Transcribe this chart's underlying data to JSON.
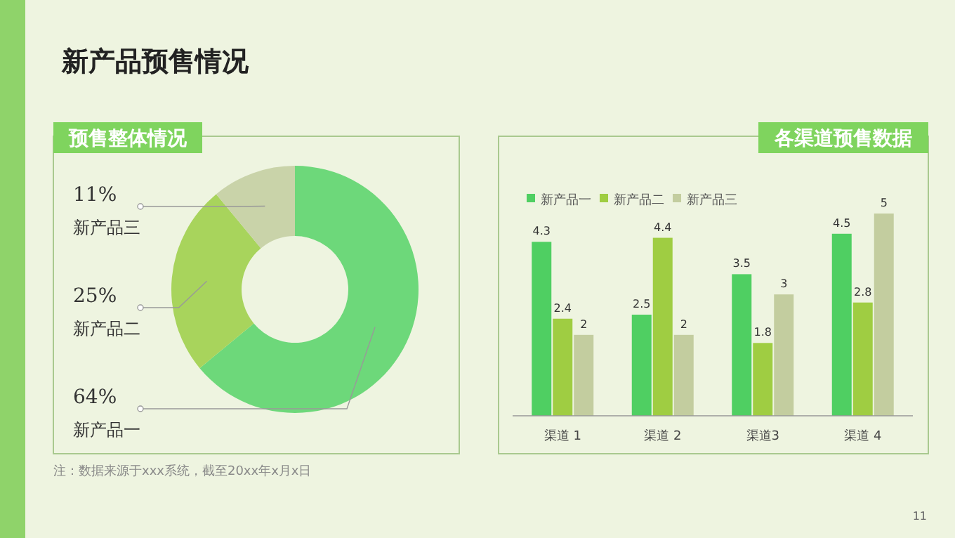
{
  "chart_data": [
    {
      "type": "other",
      "title": "新产品预售情况",
      "annotations": [
        "注：数据来源于xxx系统，截至20xx年x月x日",
        "11"
      ]
    },
    {
      "type": "donut",
      "title": "预售整体情况",
      "categories": [
        "新产品一",
        "新产品二",
        "新产品三"
      ],
      "values": [
        64,
        25,
        11
      ],
      "colors": [
        "#6dd87a",
        "#a8d45c",
        "#c9d3a9"
      ],
      "value_labels": [
        "64%",
        "25%",
        "11%"
      ]
    },
    {
      "type": "bar",
      "title": "各渠道预售数据",
      "categories": [
        "渠道 1",
        "渠道 2",
        "渠道3",
        "渠道 4"
      ],
      "series": [
        {
          "name": "新产品一",
          "color": "#4fcf62",
          "values": [
            4.3,
            2.5,
            3.5,
            4.5
          ]
        },
        {
          "name": "新产品二",
          "color": "#9fcd42",
          "values": [
            2.4,
            4.4,
            1.8,
            2.8
          ]
        },
        {
          "name": "新产品三",
          "color": "#c3cd9f",
          "values": [
            2,
            2,
            3,
            5
          ]
        }
      ],
      "data_labels": true,
      "legend": "top"
    }
  ]
}
